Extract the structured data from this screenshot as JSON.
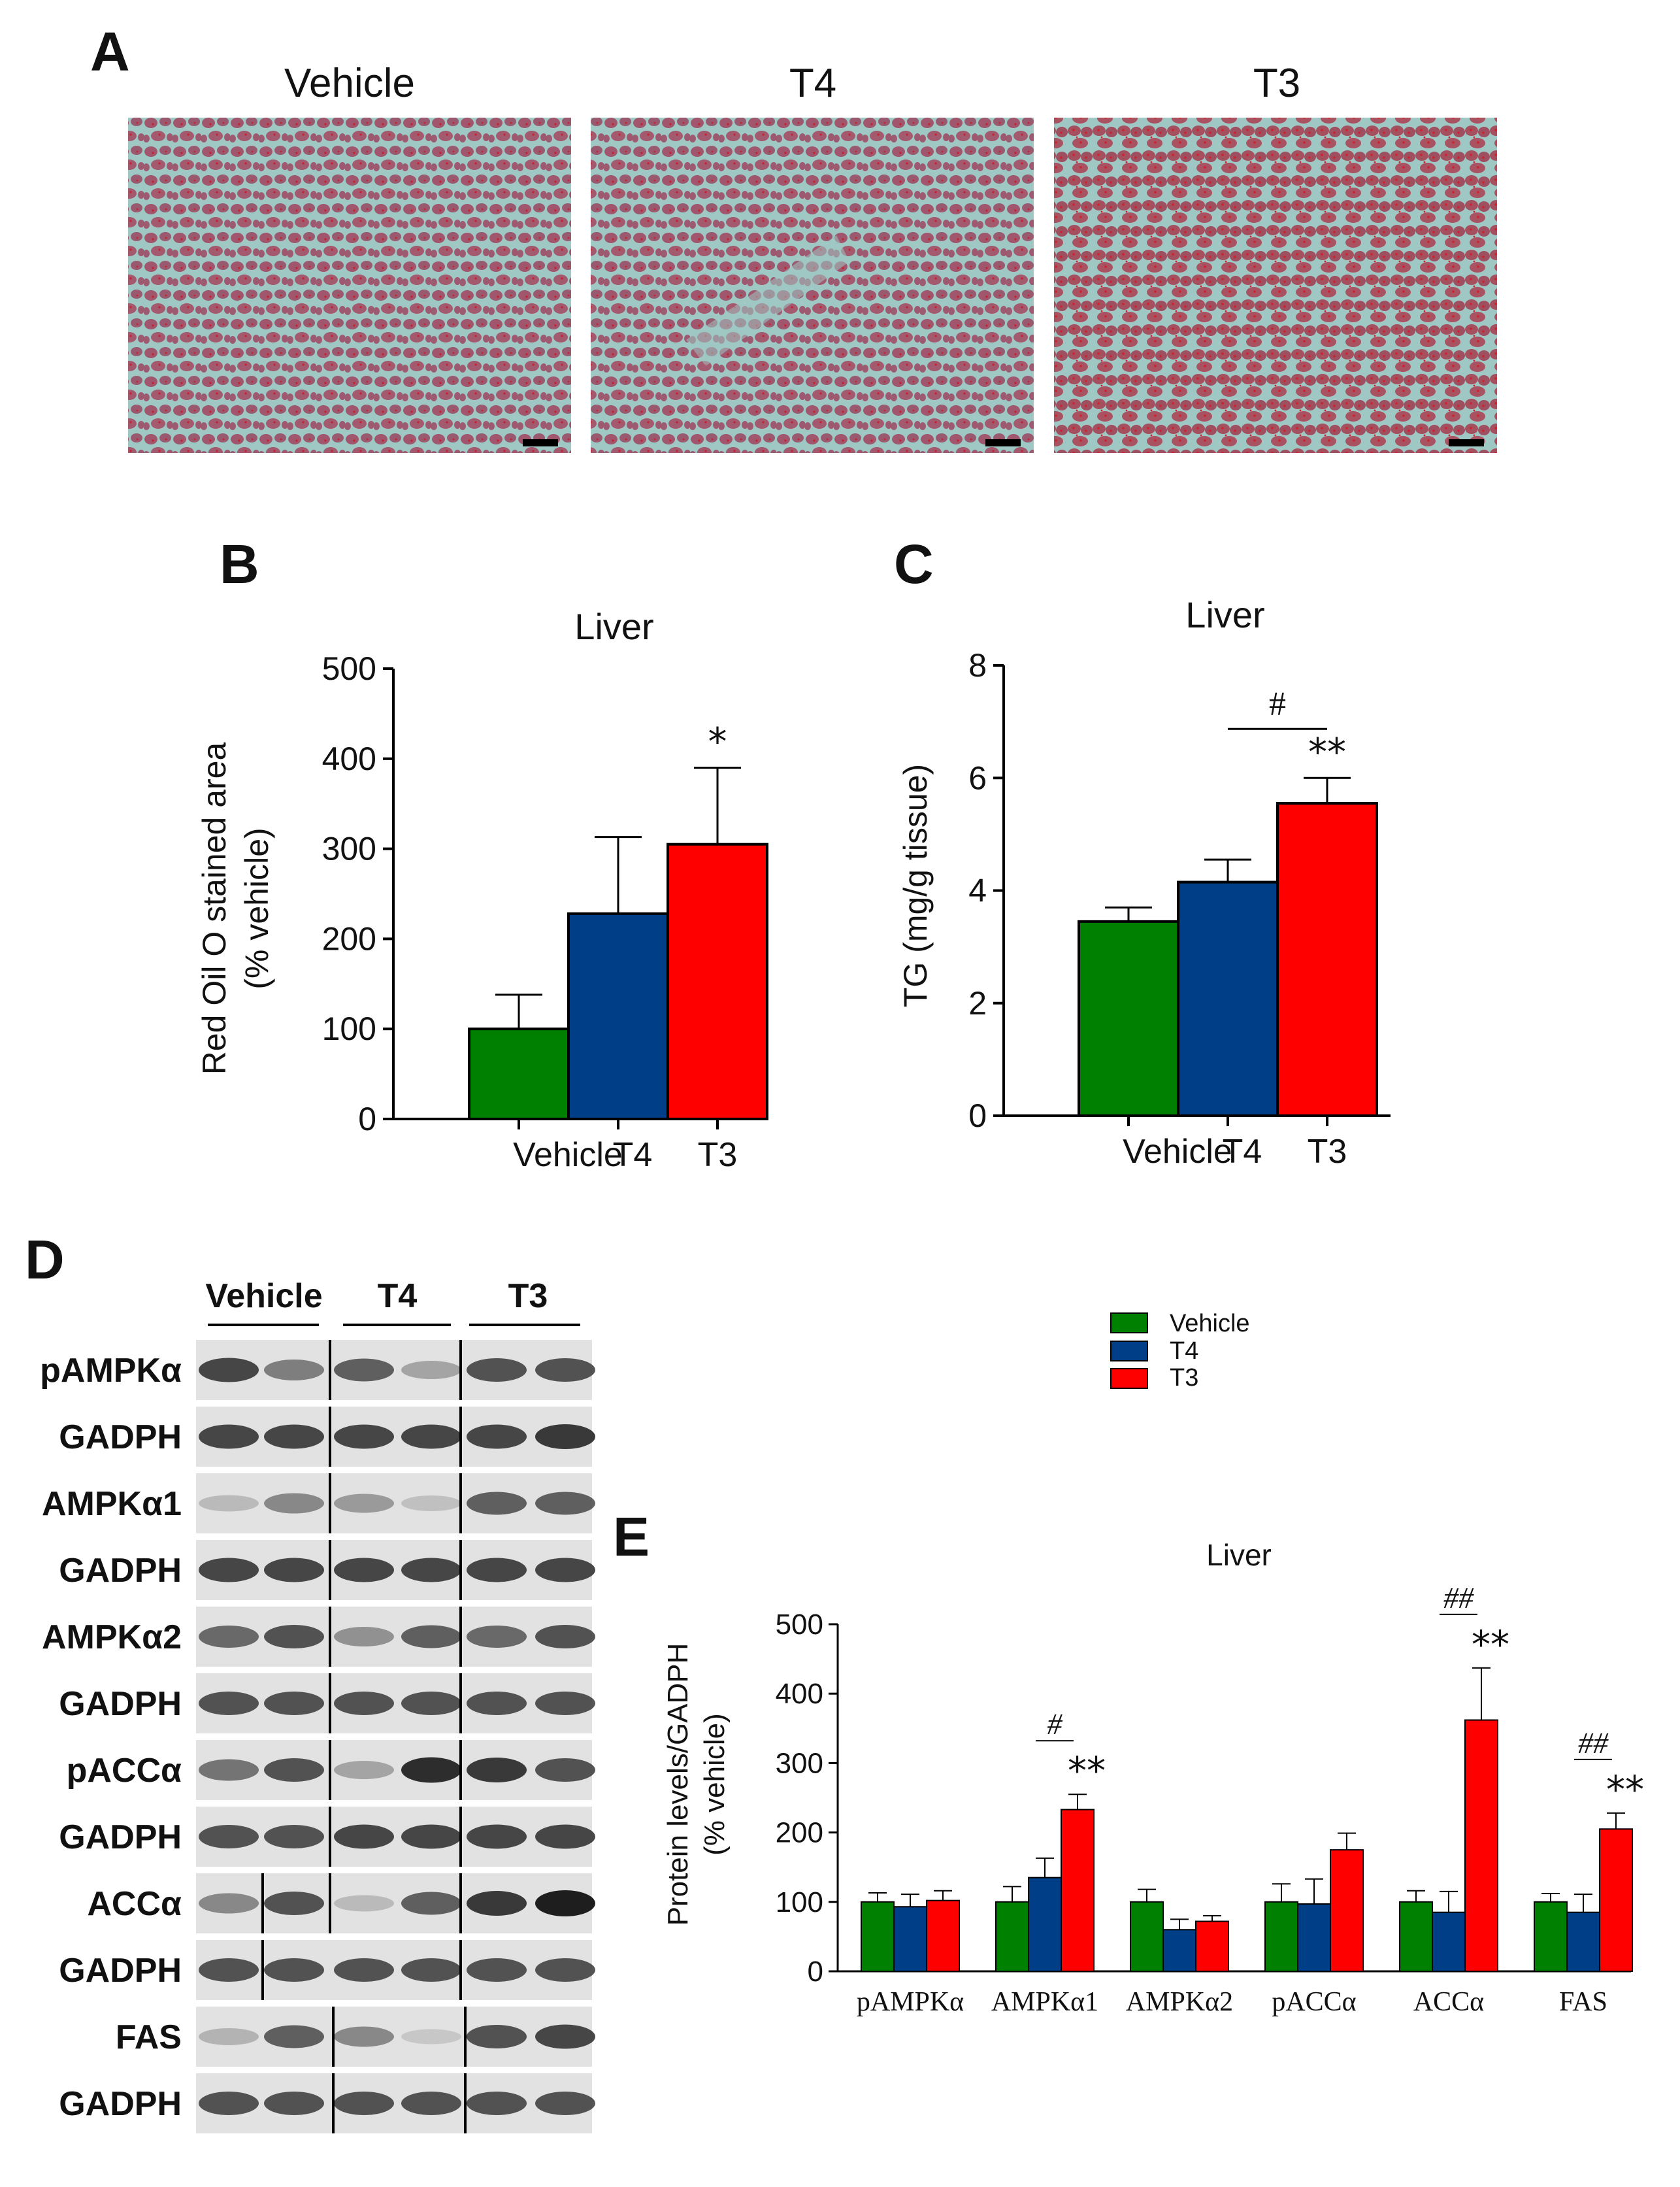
{
  "colors": {
    "vehicle": "#008000",
    "t4": "#003f87",
    "t3": "#ff0000",
    "axis": "#000000",
    "histology_bg": "#9fc8c4",
    "histology_stain": "#a0566c"
  },
  "panel_a": {
    "letter": "A",
    "images": [
      {
        "title": "Vehicle",
        "description": "red oil o liver section"
      },
      {
        "title": "T4",
        "description": "red oil o liver section"
      },
      {
        "title": "T3",
        "description": "red oil o liver section"
      }
    ]
  },
  "panel_b": {
    "letter": "B"
  },
  "panel_c": {
    "letter": "C"
  },
  "panel_d": {
    "letter": "D",
    "groups": [
      "Vehicle",
      "T4",
      "T3"
    ],
    "rows": [
      "pAMPKα",
      "GADPH",
      "AMPKα1",
      "GADPH",
      "AMPKα2",
      "GADPH",
      "pACCα",
      "GADPH",
      "ACCα",
      "GADPH",
      "FAS",
      "GADPH"
    ]
  },
  "panel_e": {
    "letter": "E"
  },
  "legend": {
    "items": [
      {
        "label": "Vehicle",
        "color": "#008000"
      },
      {
        "label": "T4",
        "color": "#003f87"
      },
      {
        "label": "T3",
        "color": "#ff0000"
      }
    ]
  },
  "chart_data": [
    {
      "panel": "B",
      "type": "bar",
      "title": "Liver",
      "xlabel": "",
      "ylabel": "Red Oil O stained area (% vehicle)",
      "ylabel_lines": [
        "Red Oil O stained area",
        "(% vehicle)"
      ],
      "categories": [
        "Vehicle",
        "T4",
        "T3"
      ],
      "values": [
        100,
        228,
        305
      ],
      "errors": [
        38,
        85,
        85
      ],
      "colors": [
        "#008000",
        "#003f87",
        "#ff0000"
      ],
      "ylim": [
        0,
        500
      ],
      "yticks": [
        0,
        100,
        200,
        300,
        400,
        500
      ],
      "significance": [
        {
          "category": "T3",
          "text": "*"
        }
      ]
    },
    {
      "panel": "C",
      "type": "bar",
      "title": "Liver",
      "xlabel": "",
      "ylabel": "TG (mg/g tissue)",
      "categories": [
        "Vehicle",
        "T4",
        "T3"
      ],
      "values": [
        3.45,
        4.15,
        5.55
      ],
      "errors": [
        0.25,
        0.4,
        0.45
      ],
      "colors": [
        "#008000",
        "#003f87",
        "#ff0000"
      ],
      "ylim": [
        0,
        8
      ],
      "yticks": [
        0,
        2,
        4,
        6,
        8
      ],
      "significance": [
        {
          "category": "T3",
          "text": "**"
        }
      ],
      "brackets": [
        {
          "from": "T4",
          "to": "T3",
          "text": "#"
        }
      ]
    },
    {
      "panel": "E",
      "type": "bar",
      "title": "Liver",
      "xlabel": "",
      "ylabel": "Protein levels/GADPH (% vehicle)",
      "ylabel_lines": [
        "Protein levels/GADPH",
        "(% vehicle)"
      ],
      "categories": [
        "pAMPKα",
        "AMPKα1",
        "AMPKα2",
        "pACCα",
        "ACCα",
        "FAS"
      ],
      "series": [
        {
          "name": "Vehicle",
          "color": "#008000",
          "values": [
            100,
            100,
            100,
            100,
            100,
            100
          ],
          "errors": [
            13,
            22,
            18,
            26,
            16,
            12
          ]
        },
        {
          "name": "T4",
          "color": "#003f87",
          "values": [
            93,
            135,
            60,
            97,
            85,
            85
          ],
          "errors": [
            18,
            28,
            15,
            36,
            30,
            26
          ]
        },
        {
          "name": "T3",
          "color": "#ff0000",
          "values": [
            102,
            233,
            72,
            175,
            362,
            205
          ],
          "errors": [
            14,
            22,
            8,
            24,
            75,
            23
          ]
        }
      ],
      "ylim": [
        0,
        500
      ],
      "yticks": [
        0,
        100,
        200,
        300,
        400,
        500
      ],
      "significance": [
        {
          "category": "AMPKα1",
          "text": "**",
          "bracket": "#"
        },
        {
          "category": "ACCα",
          "text": "**",
          "bracket": "##"
        },
        {
          "category": "FAS",
          "text": "**",
          "bracket": "##"
        }
      ]
    }
  ]
}
